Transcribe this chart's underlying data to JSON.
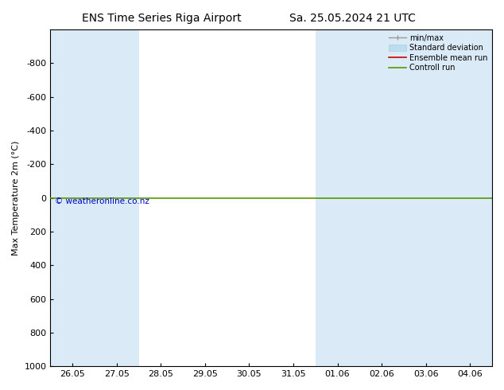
{
  "title_left": "ENS Time Series Riga Airport",
  "title_right": "Sa. 25.05.2024 21 UTC",
  "ylabel": "Max Temperature 2m (°C)",
  "watermark": "© weatheronline.co.nz",
  "ylim_top": -1000,
  "ylim_bottom": 1000,
  "yticks": [
    -800,
    -600,
    -400,
    -200,
    0,
    200,
    400,
    600,
    800,
    1000
  ],
  "x_tick_labels": [
    "26.05",
    "27.05",
    "28.05",
    "29.05",
    "30.05",
    "31.05",
    "01.06",
    "02.06",
    "03.06",
    "04.06"
  ],
  "x_tick_positions": [
    0,
    1,
    2,
    3,
    4,
    5,
    6,
    7,
    8,
    9
  ],
  "shaded_columns": [
    0,
    1,
    6,
    7,
    8,
    9
  ],
  "shade_color": "#daeaf7",
  "control_run_y": 0,
  "control_run_color": "#559900",
  "ensemble_mean_color": "#cc0000",
  "minmax_color": "#999999",
  "stddev_color": "#bbddee",
  "background_color": "#ffffff",
  "legend_items": [
    "min/max",
    "Standard deviation",
    "Ensemble mean run",
    "Controll run"
  ],
  "legend_line_colors": [
    "#999999",
    "#bbddee",
    "#cc0000",
    "#559900"
  ],
  "title_fontsize": 10,
  "axis_fontsize": 8,
  "tick_fontsize": 8
}
